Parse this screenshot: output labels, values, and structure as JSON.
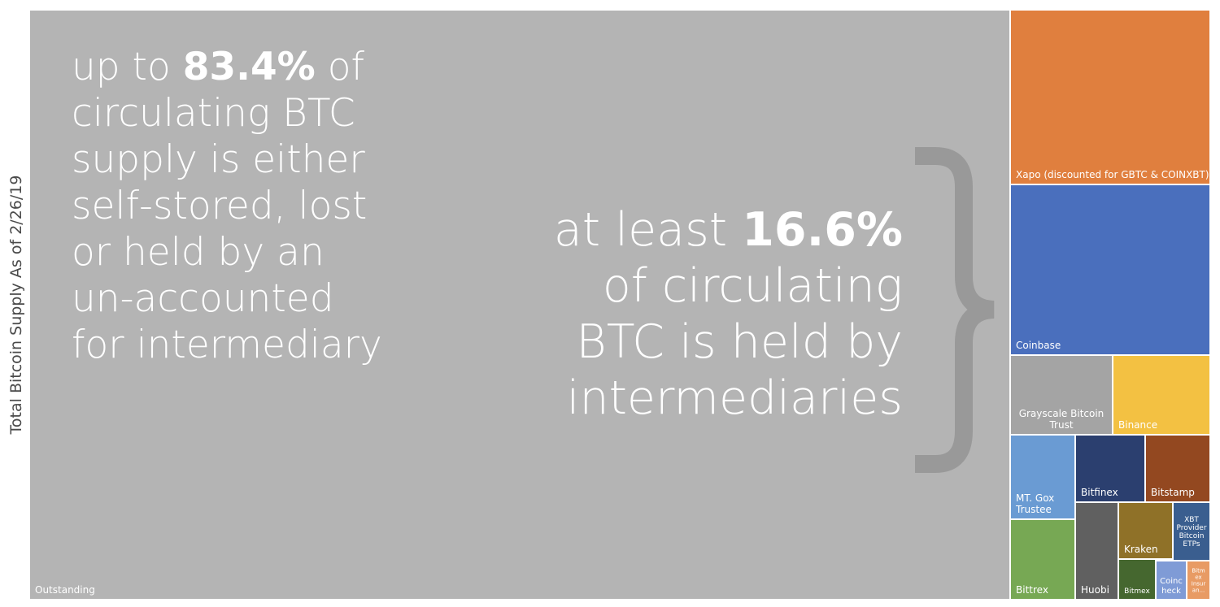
{
  "chart_data": {
    "type": "treemap",
    "ylabel": "Total Bitcoin Supply As of 2/26/19",
    "cells": [
      {
        "name": "Outstanding",
        "label": [
          "Outstanding"
        ],
        "color": "#b4b4b4"
      },
      {
        "name": "Xapo (discounted for GBTC & COINXBT)",
        "label": [
          "Xapo (discounted for GBTC & COINXBT)"
        ],
        "color": "#e07f3e"
      },
      {
        "name": "Coinbase",
        "label": [
          "Coinbase"
        ],
        "color": "#4a6fbd"
      },
      {
        "name": "Grayscale Bitcoin Trust",
        "label": [
          "Grayscale Bitcoin",
          "Trust"
        ],
        "color": "#a4a4a4"
      },
      {
        "name": "Binance",
        "label": [
          "Binance"
        ],
        "color": "#f3c142"
      },
      {
        "name": "MT. Gox Trustee",
        "label": [
          "MT. Gox",
          "Trustee"
        ],
        "color": "#6a9bd3"
      },
      {
        "name": "Bitfinex",
        "label": [
          "Bitfinex"
        ],
        "color": "#2b3f6f"
      },
      {
        "name": "Bitstamp",
        "label": [
          "Bitstamp"
        ],
        "color": "#934820"
      },
      {
        "name": "Bittrex",
        "label": [
          "Bittrex"
        ],
        "color": "#77a854"
      },
      {
        "name": "Huobi",
        "label": [
          "Huobi"
        ],
        "color": "#606060"
      },
      {
        "name": "Kraken",
        "label": [
          "Kraken"
        ],
        "color": "#8f7128"
      },
      {
        "name": "XBT Provider Bitcoin ETPs",
        "label": [
          "XBT",
          "Provider",
          "Bitcoin",
          "ETPs"
        ],
        "color": "#3a5e8f"
      },
      {
        "name": "Bitmex",
        "label": [
          "Bitmex"
        ],
        "color": "#45672f"
      },
      {
        "name": "Coincheck",
        "label": [
          "Coinc",
          "heck"
        ],
        "color": "#7f9bd6"
      },
      {
        "name": "Bitmex Insurance",
        "label": [
          "Bitm",
          "ex",
          "Insur",
          "an..."
        ],
        "color": "#e89b64"
      }
    ],
    "callout_left": {
      "lines": [
        [
          "up to ",
          "83.4%",
          " of"
        ],
        [
          "circulating BTC"
        ],
        [
          "supply is either"
        ],
        [
          "self-stored, lost"
        ],
        [
          "or held by an"
        ],
        [
          "un-accounted"
        ],
        [
          "for intermediary"
        ]
      ]
    },
    "callout_right": {
      "lines": [
        [
          "at least ",
          "16.6%"
        ],
        [
          "of circulating"
        ],
        [
          "BTC is held by"
        ],
        [
          "intermediaries"
        ]
      ]
    },
    "brace_color": "#999999"
  }
}
